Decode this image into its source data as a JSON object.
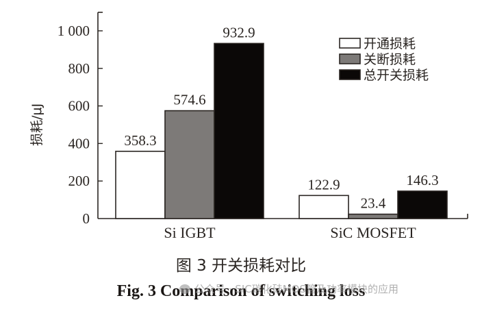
{
  "chart_data": {
    "type": "bar",
    "title": "图 3 开关损耗对比",
    "subtitle": "Fig. 3 Comparison of switching loss",
    "xlabel": "",
    "ylabel": "损耗/μJ",
    "ylim": [
      0,
      1000
    ],
    "yticks": [
      0,
      200,
      400,
      600,
      800,
      1000
    ],
    "ytick_labels": [
      "0",
      "200",
      "400",
      "600",
      "800",
      "1 000"
    ],
    "categories": [
      "Si IGBT",
      "SiC MOSFET"
    ],
    "series": [
      {
        "name": "开通损耗",
        "values": [
          358.3,
          122.9
        ],
        "color": "#ffffff"
      },
      {
        "name": "关断损耗",
        "values": [
          574.6,
          23.4
        ],
        "color": "#7d7a78"
      },
      {
        "name": "总开关损耗",
        "values": [
          932.9,
          146.3
        ],
        "color": "#0b0807"
      }
    ],
    "data_labels": [
      [
        "358.3",
        "122.9"
      ],
      [
        "574.6",
        "23.4"
      ],
      [
        "932.9",
        "146.3"
      ]
    ],
    "legend_position": "upper right",
    "grid": false
  },
  "caption": {
    "cn": "图 3  开关损耗对比",
    "en": "Fig. 3 Comparison of switching loss"
  },
  "watermark": {
    "text": "公众号 · SIC碳化硅MOS管及功率模块的应用"
  }
}
